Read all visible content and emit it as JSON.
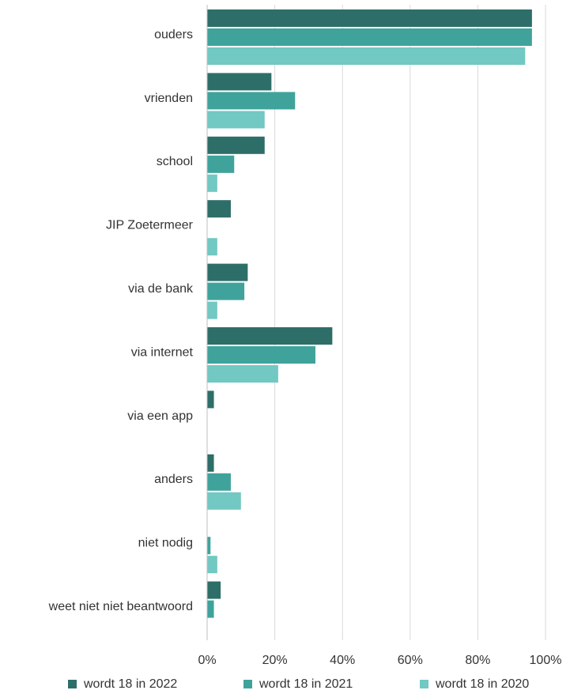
{
  "chart_data": {
    "type": "bar",
    "orientation": "horizontal",
    "categories": [
      "ouders",
      "vrienden",
      "school",
      "JIP Zoetermeer",
      "via de bank",
      "via internet",
      "via een app",
      "anders",
      "niet nodig",
      "weet niet niet beantwoord"
    ],
    "series": [
      {
        "name": "wordt 18 in 2022",
        "color": "#2e6e69",
        "values": [
          96,
          19,
          17,
          7,
          12,
          37,
          2,
          2,
          0,
          4
        ]
      },
      {
        "name": "wordt 18 in 2021",
        "color": "#3fa39c",
        "values": [
          96,
          26,
          8,
          null,
          11,
          32,
          null,
          7,
          1,
          2
        ]
      },
      {
        "name": "wordt 18 in 2020",
        "color": "#72c8c2",
        "values": [
          94,
          17,
          3,
          3,
          3,
          21,
          null,
          10,
          3,
          null
        ]
      }
    ],
    "xlim": [
      0,
      100
    ],
    "xticks": [
      0,
      20,
      40,
      60,
      80,
      100
    ],
    "tick_suffix": "%",
    "grid": "vertical",
    "legend_position": "bottom",
    "title": "",
    "xlabel": "",
    "ylabel": ""
  }
}
